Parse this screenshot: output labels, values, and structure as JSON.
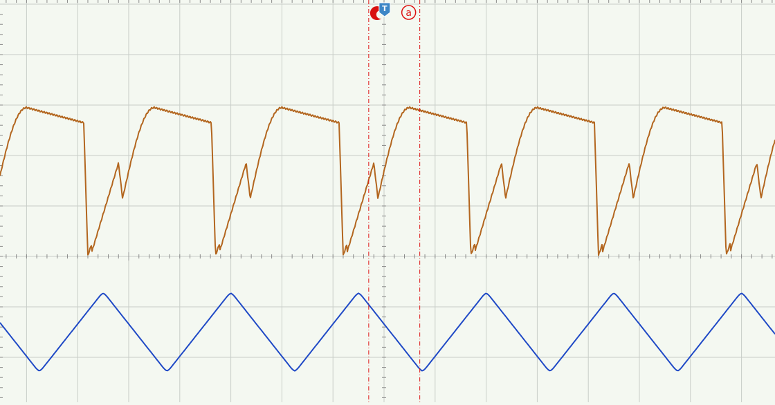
{
  "chart_data": {
    "type": "line",
    "title": "",
    "xlabel": "",
    "ylabel": "",
    "grid": true,
    "xlim": [
      -5,
      5
    ],
    "ylim": [
      -4,
      4
    ],
    "x_divisions": 10,
    "y_divisions": 8,
    "series": [
      {
        "color": "#b3661f",
        "shape": "rectified-sawtooth",
        "period": 2.5,
        "peak_y": 2.95,
        "min_y": 0.0,
        "notch_y": 1.2,
        "x": [
          -5.0,
          -4.8,
          -4.6,
          -4.4,
          -4.2,
          -3.4,
          -3.3,
          -3.25,
          -3.2,
          -2.95,
          -2.9,
          -2.85,
          -2.6,
          -2.4,
          -2.2,
          -1.7,
          -0.8,
          -0.75,
          -0.7,
          -0.45,
          -0.4,
          -0.35,
          -0.1,
          0.1,
          0.3,
          0.8,
          1.7,
          1.75,
          1.8,
          2.05,
          2.1,
          2.15,
          2.4,
          2.6,
          2.8,
          3.3,
          4.2,
          4.25,
          4.3,
          4.55,
          4.6,
          4.65,
          5.0
        ],
        "y": [
          1.8,
          2.4,
          2.85,
          2.95,
          2.85,
          2.65,
          0.0,
          0.3,
          1.0,
          1.8,
          1.2,
          2.2,
          2.85,
          2.95,
          2.9,
          2.65,
          0.0,
          0.3,
          1.0,
          1.8,
          1.2,
          2.2,
          2.85,
          2.95,
          2.9,
          2.65,
          0.0,
          0.3,
          1.0,
          1.8,
          1.2,
          2.2,
          2.85,
          2.95,
          2.9,
          2.65,
          0.0,
          0.3,
          1.0,
          1.8,
          1.2,
          2.2,
          2.2
        ]
      },
      {
        "color": "#1f49c6",
        "shape": "triangle",
        "period": 2.5,
        "x": [
          -5.0,
          -4.25,
          -3.0,
          -1.75,
          -0.5,
          0.75,
          2.0,
          3.25,
          4.5,
          5.0
        ],
        "y": [
          -1.3,
          -2.3,
          -0.7,
          -2.3,
          -0.7,
          -2.3,
          -0.7,
          -2.3,
          -0.7,
          -1.4
        ]
      }
    ],
    "markers": {
      "trigger_label": "T",
      "cursor_label": "a",
      "trigger_x": -0.3,
      "cursor_x": 0.7,
      "marker_color": "#dd1111"
    },
    "colors": {
      "background": "#f4f8f1",
      "grid": "#c8cdc8",
      "axis": "#888888"
    }
  }
}
